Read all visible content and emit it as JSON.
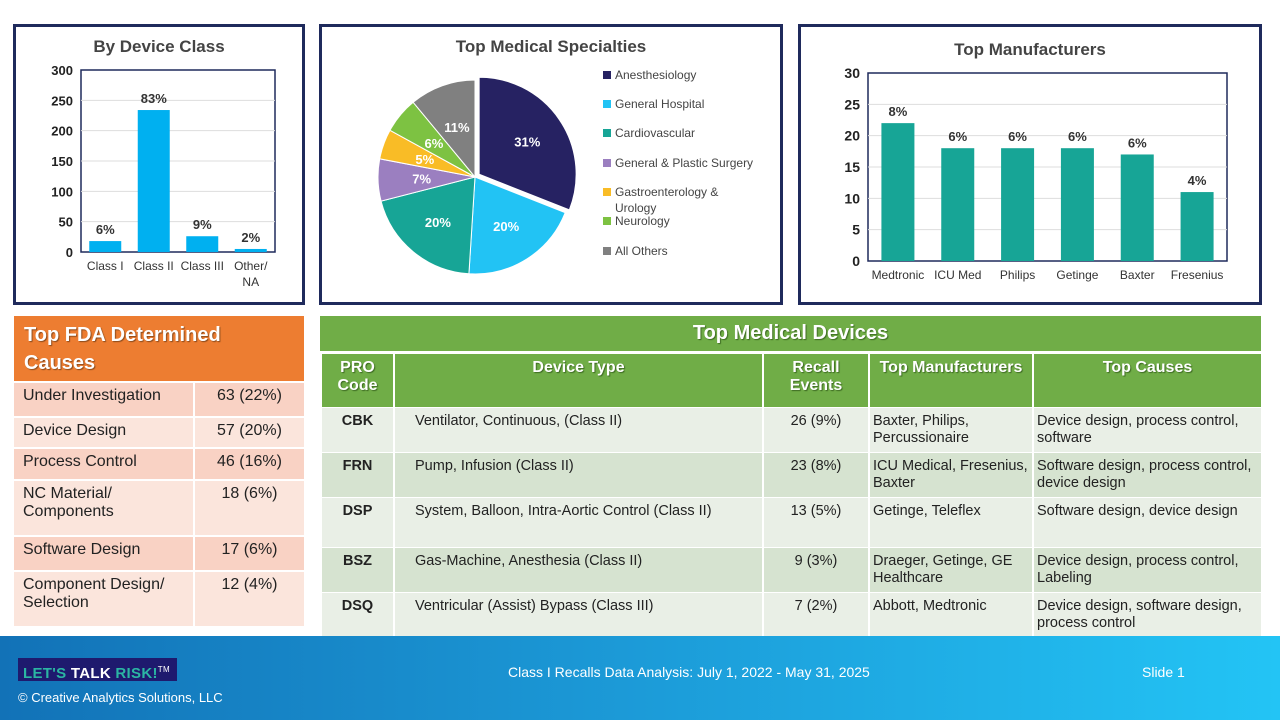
{
  "chart_data": [
    {
      "type": "bar",
      "title": "By Device  Class",
      "categories": [
        "Class I",
        "Class II",
        "Class III",
        "Other/ NA"
      ],
      "values": [
        18,
        234,
        26,
        5
      ],
      "data_labels": [
        "6%",
        "83%",
        "9%",
        "2%"
      ],
      "ylim": [
        0,
        300
      ],
      "yticks": [
        0,
        50,
        100,
        150,
        200,
        250,
        300
      ],
      "color": "#00B0F0"
    },
    {
      "type": "pie",
      "title": "Top Medical Specialties",
      "categories": [
        "Anesthesiology",
        "General Hospital",
        "Cardiovascular",
        "General & Plastic Surgery",
        "Gastroenterology & Urology",
        "Neurology",
        "All Others"
      ],
      "values": [
        31,
        20,
        20,
        7,
        5,
        6,
        11
      ],
      "data_labels": [
        "31%",
        "20%",
        "20%",
        "7%",
        "5%",
        "6%",
        "11%"
      ],
      "colors": [
        "#262262",
        "#22C3F4",
        "#17A596",
        "#9B7FC0",
        "#F9BC26",
        "#7DC242",
        "#808080"
      ],
      "legend": "right"
    },
    {
      "type": "bar",
      "title": "Top Manufacturers",
      "categories": [
        "Medtronic",
        "ICU Med",
        "Philips",
        "Getinge",
        "Baxter",
        "Fresenius"
      ],
      "values": [
        22,
        18,
        18,
        18,
        17,
        11
      ],
      "data_labels": [
        "8%",
        "6%",
        "6%",
        "6%",
        "6%",
        "4%"
      ],
      "ylim": [
        0,
        30
      ],
      "yticks": [
        0,
        5,
        10,
        15,
        20,
        25,
        30
      ],
      "color": "#17A596"
    }
  ],
  "causes": {
    "title": "Top FDA Determined Causes",
    "rows": [
      {
        "cause": "Under Investigation",
        "value": "63 (22%)"
      },
      {
        "cause": "Device Design",
        "value": "57 (20%)"
      },
      {
        "cause": "Process Control",
        "value": "46 (16%)"
      },
      {
        "cause": "NC Material/ Components",
        "value": "18 (6%)"
      },
      {
        "cause": "Software Design",
        "value": "17 (6%)"
      },
      {
        "cause": "Component Design/ Selection",
        "value": "12 (4%)"
      }
    ]
  },
  "devices": {
    "title": "Top Medical Devices",
    "headers": [
      "PRO Code",
      "Device Type",
      "Recall Events",
      "Top Manufacturers",
      "Top Causes"
    ],
    "rows": [
      {
        "code": "CBK",
        "type": "Ventilator, Continuous, (Class II)",
        "events": "26 (9%)",
        "mfr": "Baxter, Philips, Percussionaire",
        "causes": "Device design, process control, software"
      },
      {
        "code": "FRN",
        "type": "Pump, Infusion (Class II)",
        "events": "23 (8%)",
        "mfr": "ICU Medical, Fresenius, Baxter",
        "causes": "Software design, process control, device design"
      },
      {
        "code": "DSP",
        "type": "System, Balloon, Intra-Aortic Control (Class II)",
        "events": "13 (5%)",
        "mfr": "Getinge, Teleflex",
        "causes": "Software design, device design"
      },
      {
        "code": "BSZ",
        "type": "Gas-Machine, Anesthesia (Class II)",
        "events": "9 (3%)",
        "mfr": "Draeger, Getinge, GE Healthcare",
        "causes": "Device design, process control, Labeling"
      },
      {
        "code": "DSQ",
        "type": "Ventricular (Assist) Bypass (Class III)",
        "events": "7 (2%)",
        "mfr": "Abbott, Medtronic",
        "causes": "Device design, software design, process control"
      }
    ]
  },
  "footer": {
    "logo_a": "LET'S ",
    "logo_b": "TALK ",
    "logo_c": "RISK!",
    "tm": "TM",
    "copyright": "© Creative Analytics Solutions, LLC",
    "title": "Class I Recalls Data Analysis: July 1, 2022 - May 31, 2025",
    "slide": "Slide 1"
  }
}
